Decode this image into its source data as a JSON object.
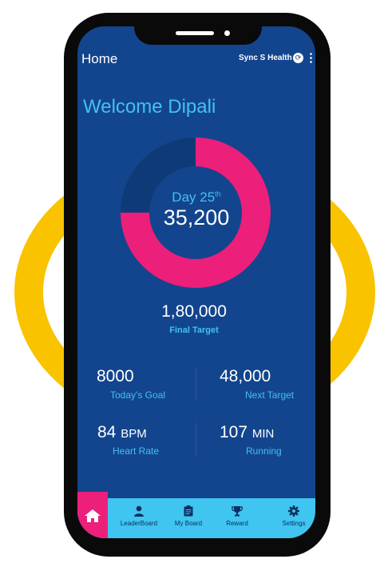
{
  "app": {
    "header": {
      "title": "Home",
      "sync_label": "Sync S Health"
    },
    "welcome": "Welcome Dipali",
    "progress": {
      "day_label": "Day 25",
      "day_suffix": "th",
      "current": "35,200",
      "completed_fraction": 0.75,
      "colors": {
        "completed": "#ec1f7a",
        "remaining": "#0f3a78"
      }
    },
    "final_target": {
      "value": "1,80,000",
      "label": "Final Target"
    },
    "stats": {
      "todays_goal": {
        "value": "8000",
        "unit": "",
        "label": "Today's Goal"
      },
      "next_target": {
        "value": "48,000",
        "unit": "",
        "label": "Next Target"
      },
      "heart_rate": {
        "value": "84",
        "unit": "BPM",
        "label": "Heart Rate"
      },
      "running": {
        "value": "107",
        "unit": "MIN",
        "label": "Running"
      }
    },
    "nav": {
      "items": [
        {
          "label": "LeaderBoard",
          "icon": "person-icon"
        },
        {
          "label": "My Board",
          "icon": "clipboard-icon"
        },
        {
          "label": "Reward",
          "icon": "trophy-icon"
        },
        {
          "label": "Settings",
          "icon": "gear-icon"
        }
      ],
      "home_icon": "home-icon"
    }
  },
  "colors": {
    "screen_bg": "#13458e",
    "accent_blue": "#42c0f5",
    "accent_pink": "#ec1f7a",
    "nav_bg": "#3fc5f0",
    "ring_yellow": "#f9c300"
  }
}
